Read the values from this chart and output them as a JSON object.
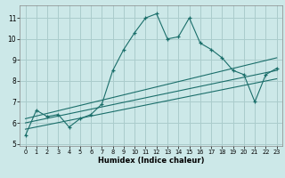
{
  "xlabel": "Humidex (Indice chaleur)",
  "bg_color": "#cce8e8",
  "grid_color": "#aacccc",
  "line_color": "#1a6e6a",
  "xlim": [
    -0.5,
    23.5
  ],
  "ylim": [
    4.9,
    11.6
  ],
  "yticks": [
    5,
    6,
    7,
    8,
    9,
    10,
    11
  ],
  "xticks": [
    0,
    1,
    2,
    3,
    4,
    5,
    6,
    7,
    8,
    9,
    10,
    11,
    12,
    13,
    14,
    15,
    16,
    17,
    18,
    19,
    20,
    21,
    22,
    23
  ],
  "series1_x": [
    0,
    1,
    2,
    3,
    4,
    5,
    6,
    7,
    8,
    9,
    10,
    11,
    12,
    13,
    14,
    15,
    16,
    17,
    18,
    19,
    20,
    21,
    22,
    23
  ],
  "series1_y": [
    5.4,
    6.6,
    6.3,
    6.4,
    5.8,
    6.2,
    6.4,
    6.9,
    8.5,
    9.5,
    10.3,
    11.0,
    11.2,
    10.0,
    10.1,
    11.0,
    9.8,
    9.5,
    9.1,
    8.5,
    8.3,
    7.0,
    8.3,
    8.6
  ],
  "series2_x": [
    0,
    23
  ],
  "series2_y": [
    6.2,
    9.1
  ],
  "series3_x": [
    0,
    23
  ],
  "series3_y": [
    6.0,
    8.5
  ],
  "series4_x": [
    0,
    23
  ],
  "series4_y": [
    5.7,
    8.1
  ]
}
